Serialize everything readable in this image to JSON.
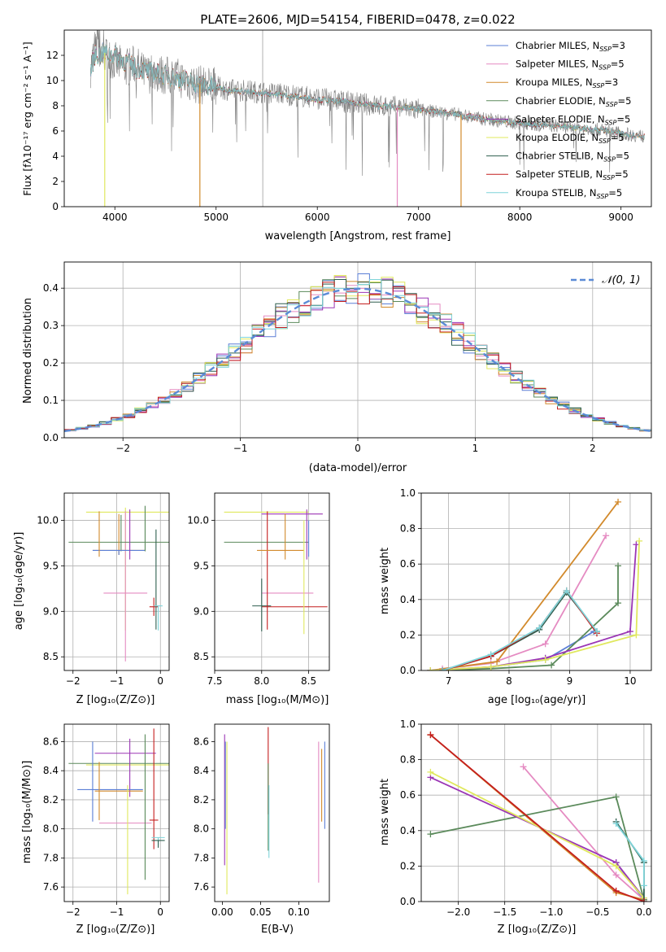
{
  "title": "PLATE=2606, MJD=54154, FIBERID=0478, z=0.022",
  "models": [
    {
      "name": "Chabrier MILES",
      "nssp": "3",
      "color": "#5b7fd6"
    },
    {
      "name": "Salpeter MILES",
      "nssp": "5",
      "color": "#e58bc2"
    },
    {
      "name": "Kroupa MILES",
      "nssp": "3",
      "color": "#d28a2c"
    },
    {
      "name": "Chabrier ELODIE",
      "nssp": "5",
      "color": "#5b8a5b"
    },
    {
      "name": "Salpeter ELODIE",
      "nssp": "5",
      "color": "#9b36b5"
    },
    {
      "name": "Kroupa ELODIE",
      "nssp": "5",
      "color": "#e0e85e"
    },
    {
      "name": "Chabrier STELIB",
      "nssp": "5",
      "color": "#2f5f4f"
    },
    {
      "name": "Salpeter STELIB",
      "nssp": "5",
      "color": "#c41e1e"
    },
    {
      "name": "Kroupa STELIB",
      "nssp": "5",
      "color": "#7fd4d9"
    }
  ],
  "legend_nssp_prefix": "N",
  "legend_nssp_sub": "SSP",
  "chart_data": [
    {
      "id": "spectrum",
      "type": "line",
      "xlabel": "wavelength [Angstrom, rest frame]",
      "ylabel": "Flux [fλ10⁻¹⁷ erg cm⁻² s⁻¹ A⁻¹]",
      "xlim": [
        3500,
        9300
      ],
      "ylim": [
        0,
        14
      ],
      "xticks": [
        4000,
        5000,
        6000,
        7000,
        8000,
        9000
      ],
      "yticks": [
        0,
        2,
        4,
        6,
        8,
        10,
        12
      ],
      "legend": "upper right",
      "data_color": "#808080",
      "data_points": [
        [
          3760,
          11
        ],
        [
          3800,
          12.5
        ],
        [
          3850,
          11.5
        ],
        [
          3900,
          12
        ],
        [
          4000,
          11.5
        ],
        [
          4100,
          11
        ],
        [
          4200,
          11.3
        ],
        [
          4300,
          10.5
        ],
        [
          4400,
          10.6
        ],
        [
          4500,
          10.4
        ],
        [
          4600,
          10.3
        ],
        [
          4700,
          10
        ],
        [
          4800,
          9.7
        ],
        [
          4900,
          9.6
        ],
        [
          5000,
          9.5
        ],
        [
          5100,
          9.3
        ],
        [
          5200,
          9.2
        ],
        [
          5300,
          9.2
        ],
        [
          5400,
          9.1
        ],
        [
          5500,
          9
        ],
        [
          5600,
          9
        ],
        [
          5800,
          8.8
        ],
        [
          6000,
          8.6
        ],
        [
          6200,
          8.4
        ],
        [
          6400,
          8.2
        ],
        [
          6600,
          8
        ],
        [
          6800,
          7.9
        ],
        [
          7000,
          7.7
        ],
        [
          7200,
          7.5
        ],
        [
          7400,
          7.3
        ],
        [
          7600,
          7
        ],
        [
          7800,
          6.8
        ],
        [
          8000,
          6.6
        ],
        [
          8200,
          6.5
        ],
        [
          8400,
          6.4
        ],
        [
          8600,
          6.2
        ],
        [
          8800,
          6.1
        ],
        [
          9000,
          5.8
        ],
        [
          9200,
          5.6
        ]
      ],
      "model_points": [
        [
          3760,
          10.8
        ],
        [
          3800,
          12
        ],
        [
          3900,
          12.2
        ],
        [
          4000,
          12
        ],
        [
          4100,
          11.5
        ],
        [
          4200,
          11
        ],
        [
          4300,
          10.8
        ],
        [
          4400,
          10.6
        ],
        [
          4500,
          10.4
        ],
        [
          4600,
          10.2
        ],
        [
          4700,
          10
        ],
        [
          4800,
          9.8
        ],
        [
          4900,
          9.6
        ],
        [
          5000,
          9.5
        ],
        [
          5100,
          9.3
        ],
        [
          5200,
          9.2
        ],
        [
          5300,
          9.1
        ],
        [
          5400,
          9
        ],
        [
          5500,
          9
        ],
        [
          5600,
          8.9
        ],
        [
          5800,
          8.7
        ],
        [
          6000,
          8.5
        ],
        [
          6200,
          8.4
        ],
        [
          6400,
          8.2
        ],
        [
          6600,
          8
        ],
        [
          6800,
          7.9
        ],
        [
          7000,
          7.7
        ],
        [
          7200,
          7.5
        ],
        [
          7400,
          7.3
        ],
        [
          7600,
          7
        ],
        [
          7800,
          6.8
        ],
        [
          8000,
          6.6
        ],
        [
          8200,
          6.5
        ],
        [
          8400,
          6.4
        ],
        [
          8600,
          6.2
        ],
        [
          8800,
          6.1
        ],
        [
          9000,
          5.8
        ],
        [
          9200,
          5.6
        ]
      ],
      "model_drops": [
        3900,
        4840,
        6790,
        7420
      ]
    },
    {
      "id": "residuals",
      "type": "histogram",
      "xlabel": "(data-model)/error",
      "ylabel": "Normed distribution",
      "xlim": [
        -2.5,
        2.5
      ],
      "ylim": [
        0,
        0.47
      ],
      "xticks": [
        -2,
        -1,
        0,
        1,
        2
      ],
      "yticks": [
        0.0,
        0.1,
        0.2,
        0.3,
        0.4
      ],
      "grid": true,
      "legend": "upper right",
      "reference_curve": {
        "label": "𝒩(0, 1)",
        "color": "#5b8bd6",
        "mean": 0,
        "sigma": 1
      },
      "bin_width": 0.1,
      "bin_start": -2.5
    },
    {
      "id": "age_vs_Z",
      "type": "errorbar",
      "xlabel": "Z [log₁₀(Z/Z⊙)]",
      "ylabel": "age  [log₁₀(age/yr)]",
      "xlim": [
        -2.2,
        0.2
      ],
      "ylim": [
        8.35,
        10.3
      ],
      "xticks": [
        -2,
        -1,
        0
      ],
      "yticks": [
        8.5,
        9.0,
        9.5,
        10.0
      ],
      "grid": true
    },
    {
      "id": "age_vs_mass",
      "type": "errorbar",
      "xlabel": "mass [log₁₀(M/M⊙)]",
      "ylabel": "",
      "xlim": [
        7.5,
        8.72
      ],
      "ylim": [
        8.35,
        10.3
      ],
      "xticks": [
        7.5,
        8.0,
        8.5
      ],
      "yticks": [
        8.5,
        9.0,
        9.5,
        10.0
      ],
      "grid": true
    },
    {
      "id": "weight_vs_age",
      "type": "line",
      "xlabel": "age  [log₁₀(age/yr)]",
      "ylabel": "mass weight",
      "xlim": [
        6.55,
        10.35
      ],
      "ylim": [
        0,
        1
      ],
      "xticks": [
        7,
        8,
        9,
        10
      ],
      "yticks": [
        0.0,
        0.2,
        0.4,
        0.6,
        0.8,
        1.0
      ],
      "grid": true,
      "series": [
        {
          "model": 0,
          "x": [
            6.7,
            6.9,
            7.7,
            8.6,
            9.4
          ],
          "y": [
            0.0,
            0.0,
            0.02,
            0.06,
            0.22
          ]
        },
        {
          "model": 1,
          "x": [
            6.9,
            7.7,
            8.6,
            9.6
          ],
          "y": [
            0.01,
            0.04,
            0.15,
            0.76
          ]
        },
        {
          "model": 2,
          "x": [
            6.7,
            7.8,
            9.8
          ],
          "y": [
            0.0,
            0.05,
            0.95
          ]
        },
        {
          "model": 3,
          "x": [
            6.7,
            7.7,
            8.7,
            9.8,
            9.8
          ],
          "y": [
            0.0,
            0.01,
            0.03,
            0.38,
            0.59
          ]
        },
        {
          "model": 4,
          "x": [
            6.7,
            7.7,
            8.6,
            10.0,
            10.1
          ],
          "y": [
            0.0,
            0.02,
            0.07,
            0.22,
            0.71
          ]
        },
        {
          "model": 5,
          "x": [
            6.7,
            7.7,
            8.6,
            10.1,
            10.15
          ],
          "y": [
            0.0,
            0.02,
            0.06,
            0.2,
            0.73
          ]
        },
        {
          "model": 6,
          "x": [
            6.9,
            7.7,
            8.5,
            8.95,
            9.45
          ],
          "y": [
            0.0,
            0.08,
            0.23,
            0.44,
            0.22
          ]
        },
        {
          "model": 7,
          "x": [
            6.9,
            7.7,
            8.5,
            8.95,
            9.45
          ],
          "y": [
            0.0,
            0.08,
            0.24,
            0.45,
            0.21
          ]
        },
        {
          "model": 8,
          "x": [
            6.9,
            7.7,
            8.5,
            8.95,
            9.45
          ],
          "y": [
            0.0,
            0.09,
            0.24,
            0.45,
            0.22
          ]
        }
      ]
    },
    {
      "id": "mass_vs_Z",
      "type": "errorbar",
      "xlabel": "Z [log₁₀(Z/Z⊙)]",
      "ylabel": "mass [log₁₀(M/M⊙)]",
      "xlim": [
        -2.2,
        0.2
      ],
      "ylim": [
        7.5,
        8.72
      ],
      "xticks": [
        -2,
        -1,
        0
      ],
      "yticks": [
        7.6,
        7.8,
        8.0,
        8.2,
        8.4,
        8.6
      ],
      "grid": true
    },
    {
      "id": "mass_vs_ebv",
      "type": "errorbar",
      "xlabel": "E(B-V)",
      "ylabel": "",
      "xlim": [
        -0.01,
        0.14
      ],
      "ylim": [
        7.5,
        8.72
      ],
      "xticks": [
        0.0,
        0.05,
        0.1
      ],
      "yticks": [
        7.6,
        7.8,
        8.0,
        8.2,
        8.4,
        8.6
      ],
      "grid": false
    },
    {
      "id": "weight_vs_Z",
      "type": "line",
      "xlabel": "Z [log₁₀(Z/Z⊙)]",
      "ylabel": "mass weight",
      "xlim": [
        -2.4,
        0.08
      ],
      "ylim": [
        0,
        1
      ],
      "xticks": [
        -2.0,
        -1.5,
        -1.0,
        -0.5,
        0.0
      ],
      "yticks": [
        0.0,
        0.2,
        0.4,
        0.6,
        0.8,
        1.0
      ],
      "grid": true,
      "series": [
        {
          "model": 0,
          "x": [
            -0.3,
            0.0,
            0.0
          ],
          "y": [
            0.22,
            0.01,
            0.0
          ]
        },
        {
          "model": 1,
          "x": [
            -1.3,
            -0.3,
            0.0
          ],
          "y": [
            0.76,
            0.15,
            0.01
          ]
        },
        {
          "model": 2,
          "x": [
            -2.3,
            -0.3,
            0.0
          ],
          "y": [
            0.94,
            0.05,
            0.01
          ]
        },
        {
          "model": 3,
          "x": [
            -2.3,
            -0.3,
            0.0
          ],
          "y": [
            0.38,
            0.59,
            0.01
          ]
        },
        {
          "model": 4,
          "x": [
            -2.3,
            -0.3,
            0.0
          ],
          "y": [
            0.7,
            0.22,
            0.02
          ]
        },
        {
          "model": 5,
          "x": [
            -2.3,
            -0.3,
            0.0
          ],
          "y": [
            0.73,
            0.2,
            0.02
          ]
        },
        {
          "model": 6,
          "x": [
            -0.3,
            0.0,
            0.0
          ],
          "y": [
            0.45,
            0.22,
            0.0
          ]
        },
        {
          "model": 7,
          "x": [
            -2.3,
            -0.3,
            0.0
          ],
          "y": [
            0.94,
            0.06,
            0.0
          ]
        },
        {
          "model": 8,
          "x": [
            -0.3,
            0.0,
            0.0
          ],
          "y": [
            0.44,
            0.23,
            0.09
          ]
        }
      ]
    }
  ]
}
